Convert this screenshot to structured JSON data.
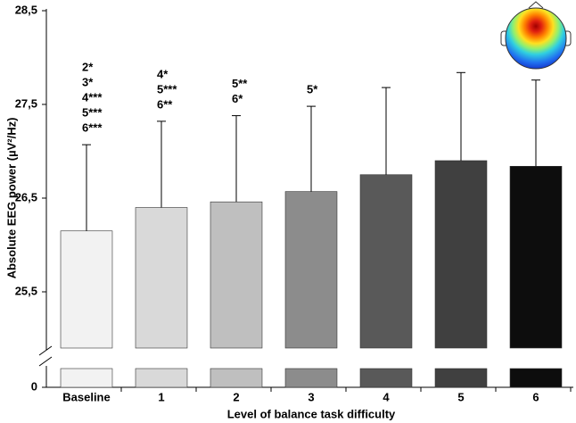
{
  "chart_data": {
    "type": "bar",
    "x_label": "Level of balance task difficulty",
    "y_label": "Absolute EEG power (µV²/Hz)",
    "categories": [
      "Baseline",
      "1",
      "2",
      "3",
      "4",
      "5",
      "6"
    ],
    "values": [
      26.15,
      26.4,
      26.46,
      26.57,
      26.75,
      26.9,
      26.84
    ],
    "errors": [
      0.92,
      0.92,
      0.92,
      0.91,
      0.93,
      0.94,
      0.92
    ],
    "colors": [
      "#f2f2f2",
      "#d9d9d9",
      "#bfbfbf",
      "#8c8c8c",
      "#595959",
      "#404040",
      "#0d0d0d"
    ],
    "annotations": [
      [
        "2*",
        "3*",
        "4***",
        "5***",
        "6***"
      ],
      [
        "4*",
        "5***",
        "6**"
      ],
      [
        "5**",
        "6*"
      ],
      [
        "5*"
      ],
      [],
      [],
      []
    ],
    "ylim": [
      0,
      28.5
    ],
    "ybreak": [
      0.2,
      24.9
    ],
    "yticks": [
      {
        "value": 0,
        "label": "0"
      },
      {
        "value": 25.5,
        "label": "25,5"
      },
      {
        "value": 26.5,
        "label": "26,5"
      },
      {
        "value": 27.5,
        "label": "27,5"
      },
      {
        "value": 28.5,
        "label": "28,5"
      }
    ]
  }
}
